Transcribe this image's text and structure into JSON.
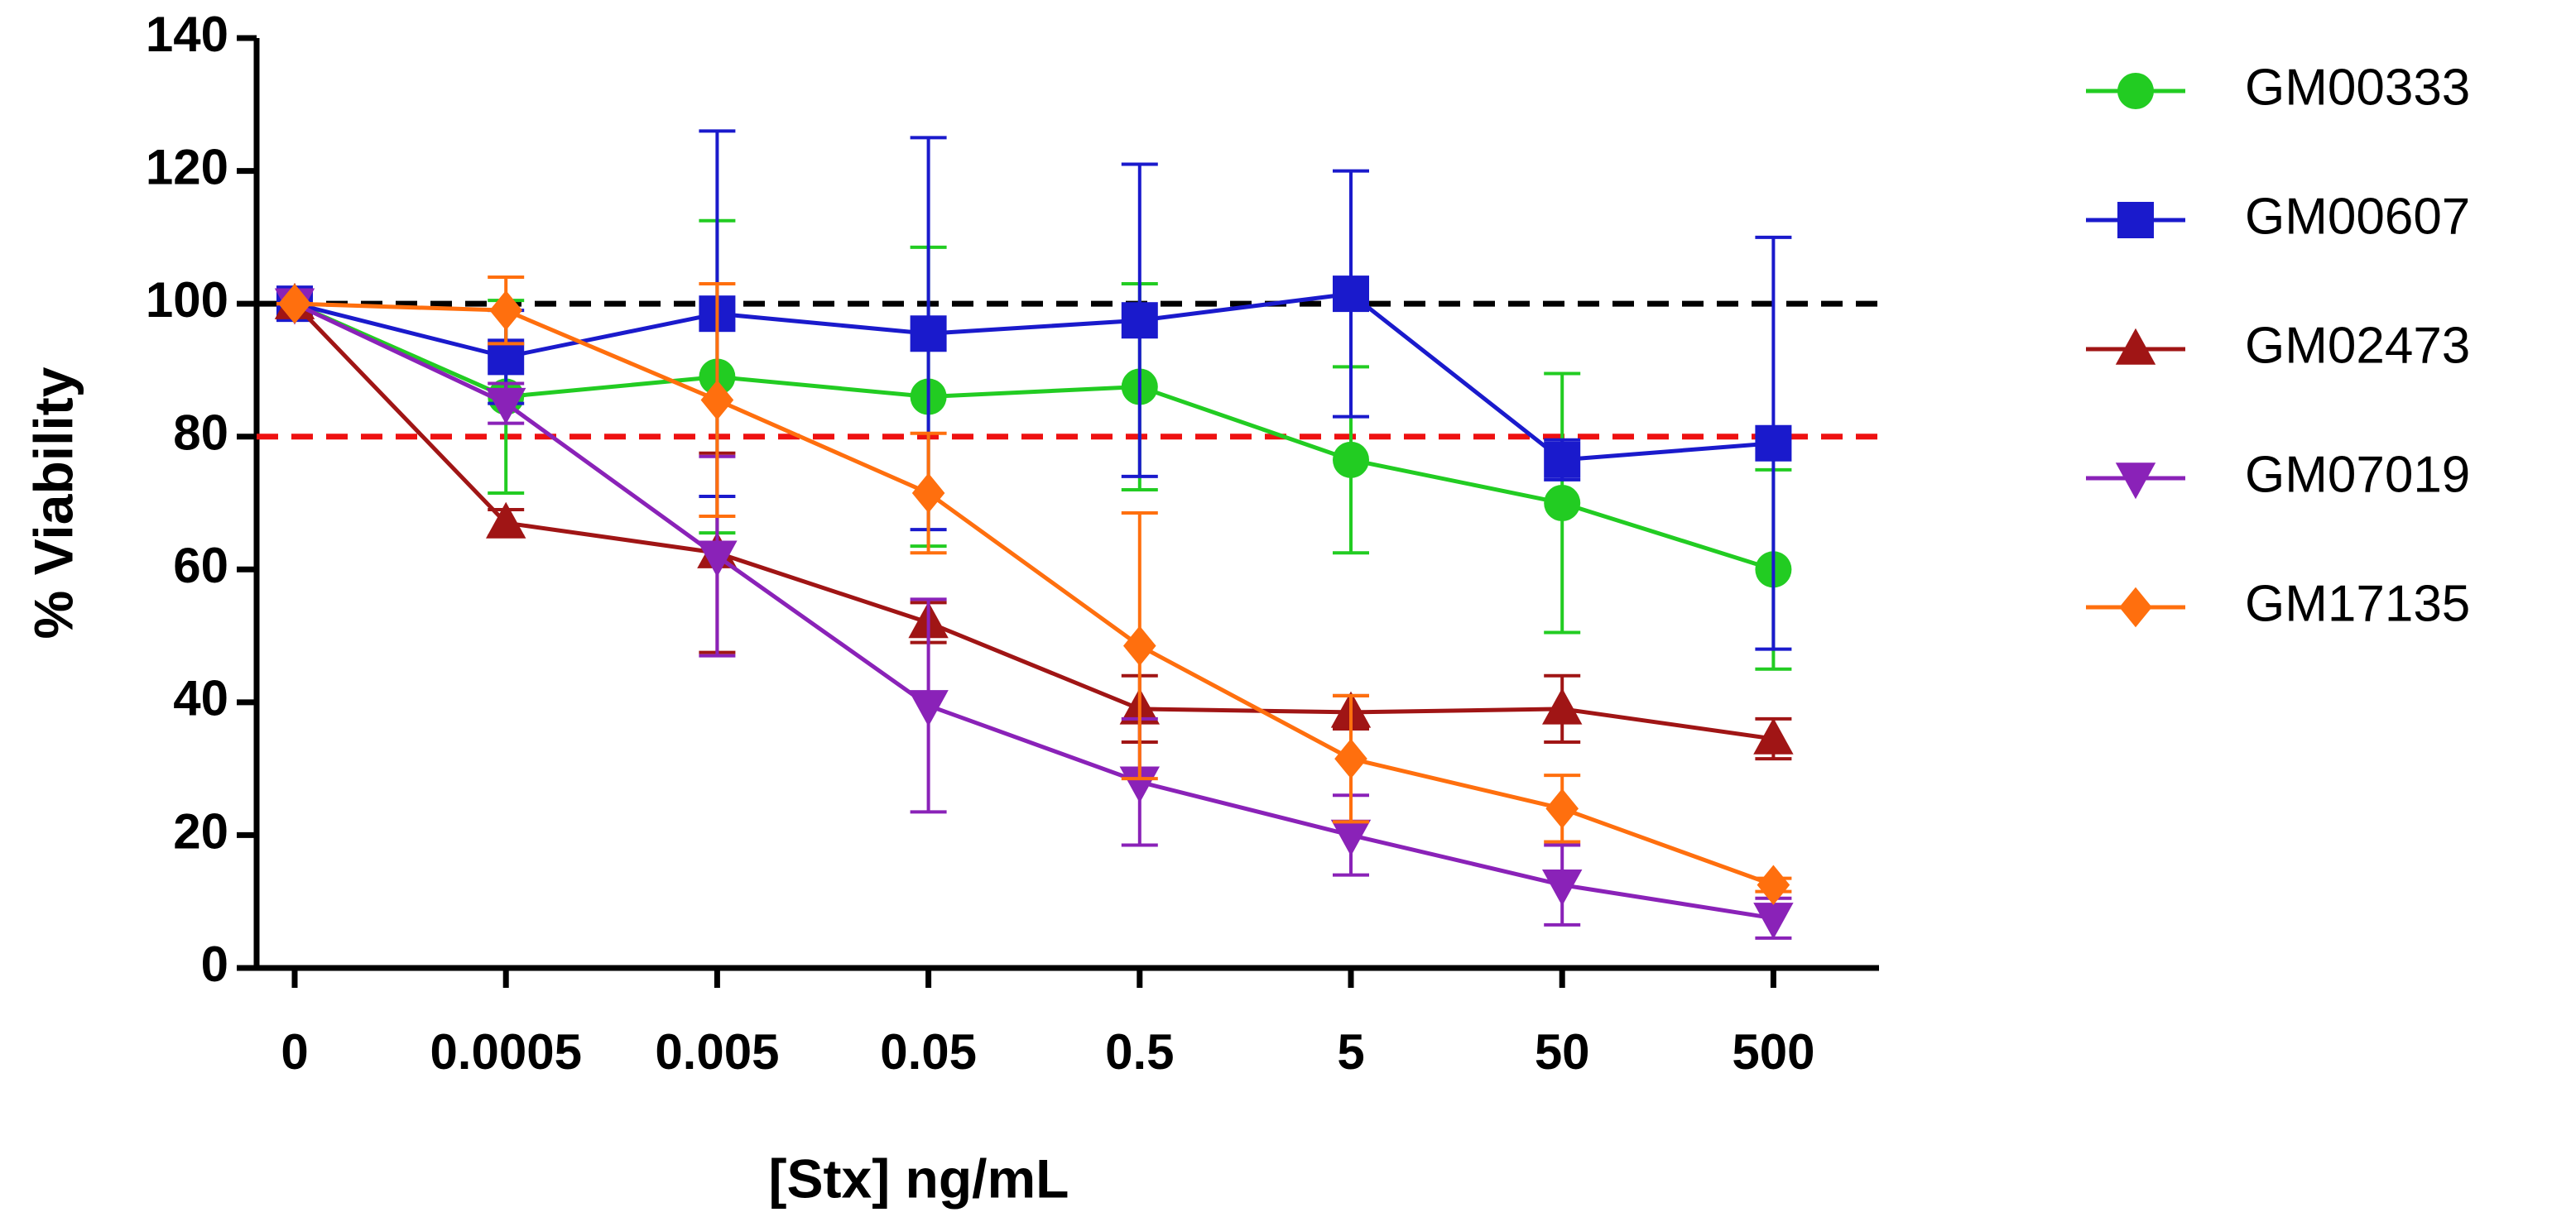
{
  "chart_data": {
    "type": "line",
    "x_label": "[Stx] ng/mL",
    "y_label": "% Viability",
    "categories": [
      "0",
      "0.0005",
      "0.005",
      "0.05",
      "0.5",
      "5",
      "50",
      "500"
    ],
    "ylim": [
      0,
      140
    ],
    "yticks": [
      0,
      20,
      40,
      60,
      80,
      100,
      120,
      140
    ],
    "reference_lines": [
      {
        "value": 100,
        "color": "#000000"
      },
      {
        "value": 80,
        "color": "#ee1111"
      }
    ],
    "series": [
      {
        "name": "GM00333",
        "color": "#22cc22",
        "marker": "circle",
        "values": [
          100,
          86,
          89,
          86,
          87.5,
          76.5,
          70,
          60
        ],
        "errors": [
          0,
          14.5,
          23.5,
          22.5,
          15.5,
          14,
          19.5,
          15
        ]
      },
      {
        "name": "GM00607",
        "color": "#1a1acc",
        "marker": "square",
        "values": [
          100,
          92,
          98.5,
          95.5,
          97.5,
          101.5,
          76.5,
          79
        ],
        "errors": [
          0,
          7,
          27.5,
          29.5,
          23.5,
          18.5,
          3,
          31
        ]
      },
      {
        "name": "GM02473",
        "color": "#a01515",
        "marker": "triangle-up",
        "values": [
          100,
          67,
          62.5,
          52,
          39,
          38.5,
          39,
          34.5
        ],
        "errors": [
          0,
          2,
          15,
          3,
          5,
          2.5,
          5,
          3
        ]
      },
      {
        "name": "GM07019",
        "color": "#8a22b8",
        "marker": "triangle-down",
        "values": [
          100,
          85,
          62,
          39.5,
          28,
          20,
          12.5,
          7.5
        ],
        "errors": [
          0,
          3,
          15,
          16,
          9.5,
          6,
          6,
          3
        ]
      },
      {
        "name": "GM17135",
        "color": "#ff6f0e",
        "marker": "diamond",
        "values": [
          100,
          99,
          85.5,
          71.5,
          48.5,
          31.5,
          24,
          12.5
        ],
        "errors": [
          0,
          5,
          17.5,
          9,
          20,
          9.5,
          5,
          1
        ]
      }
    ]
  }
}
